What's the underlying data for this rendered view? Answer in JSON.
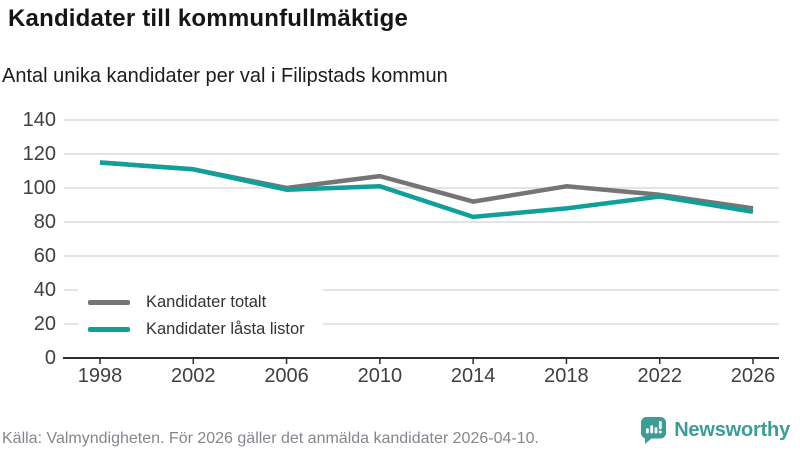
{
  "header": {
    "title": "Kandidater till kommunfullmäktige",
    "subtitle": "Antal unika kandidater per val i Filipstads kommun"
  },
  "chart_data": {
    "type": "line",
    "categories": [
      "1998",
      "2002",
      "2006",
      "2010",
      "2014",
      "2018",
      "2022",
      "2026"
    ],
    "series": [
      {
        "name": "Kandidater totalt",
        "values": [
          115,
          111,
          100,
          107,
          92,
          101,
          96,
          88
        ],
        "color": "#757578"
      },
      {
        "name": "Kandidater låsta listor",
        "values": [
          115,
          111,
          99,
          101,
          83,
          88,
          95,
          86
        ],
        "color": "#10a09a"
      }
    ],
    "title": "Kandidater till kommunfullmäktige",
    "subtitle": "Antal unika kandidater per val i Filipstads kommun",
    "xlabel": "",
    "ylabel": "",
    "ylim": [
      0,
      140
    ],
    "yticks": [
      0,
      20,
      40,
      60,
      80,
      100,
      120,
      140
    ],
    "grid": true,
    "legend_position": "inside-bottom-left"
  },
  "footer": {
    "source": "Källa: Valmyndigheten. För 2026 gäller det anmälda kandidater 2026-04-10.",
    "brand": "Newsworthy"
  },
  "colors": {
    "accent_teal": "#10a09a",
    "series_gray": "#757578",
    "brand_teal": "#3a9e97",
    "gridline": "#e4e4e4",
    "axis": "#2d2d2d"
  }
}
